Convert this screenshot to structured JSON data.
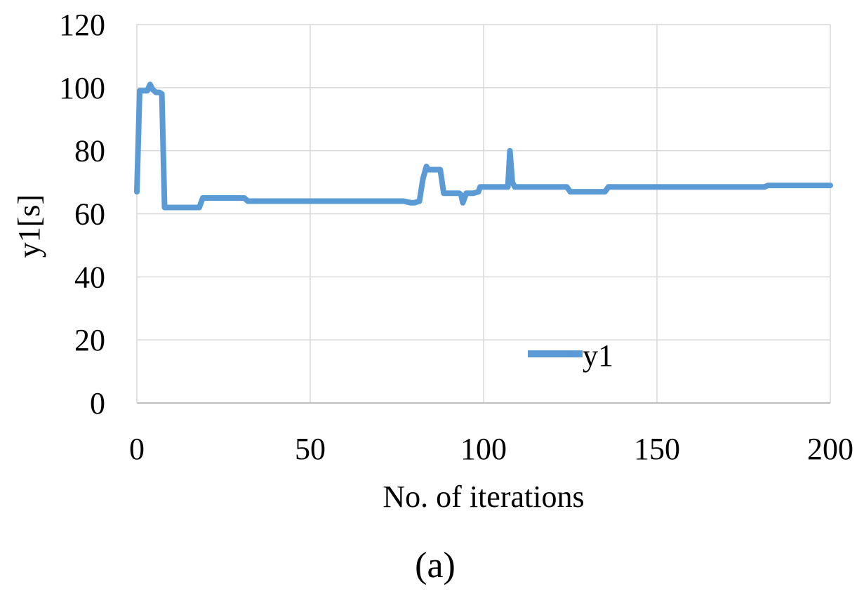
{
  "chart_data": {
    "type": "line",
    "title": "",
    "xlabel": "No. of iterations",
    "ylabel": "y1[s]",
    "xlim": [
      0,
      200
    ],
    "ylim": [
      0,
      120
    ],
    "x_ticks": [
      "0",
      "50",
      "100",
      "150",
      "200"
    ],
    "y_ticks": [
      "0",
      "20",
      "40",
      "60",
      "80",
      "100",
      "120"
    ],
    "grid": true,
    "legend_position": "bottom-center",
    "series": [
      {
        "name": "y1",
        "color": "#5b9bd5",
        "x": [
          0,
          0.8,
          1.5,
          3,
          3.8,
          4.5,
          5.5,
          6.5,
          7.2,
          8,
          9,
          18,
          19,
          31,
          32,
          77,
          79,
          80,
          81.5,
          82.5,
          83.5,
          84,
          87.5,
          88.5,
          93,
          93.5,
          94,
          95,
          97,
          98.5,
          99,
          106,
          107,
          107.6,
          108.3,
          109,
          120,
          122,
          124,
          125,
          133,
          135,
          136,
          137,
          181,
          182,
          200
        ],
        "y": [
          67,
          99,
          99,
          99,
          101,
          99.5,
          98.5,
          98.5,
          98,
          62,
          62,
          62,
          65,
          65,
          64,
          64,
          63.5,
          63.5,
          64,
          71,
          75,
          74,
          74,
          66.5,
          66.5,
          66,
          63.5,
          66.5,
          66.5,
          67,
          68.5,
          68.5,
          68.5,
          80,
          70,
          68.5,
          68.5,
          68.5,
          68.5,
          67,
          67,
          67,
          68.5,
          68.5,
          68.5,
          69,
          69
        ]
      }
    ],
    "caption": "(a)"
  }
}
